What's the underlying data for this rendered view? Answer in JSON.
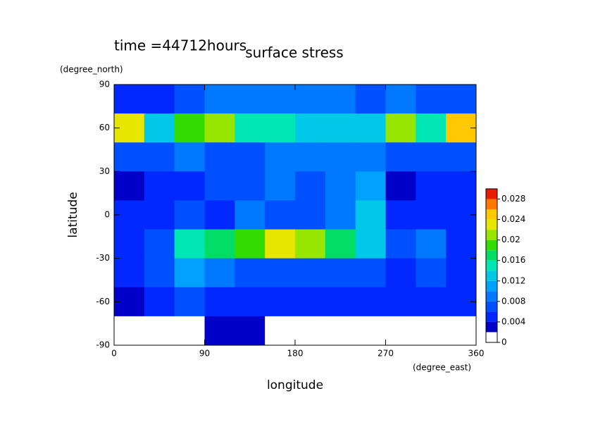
{
  "chart_data": {
    "type": "contour",
    "title": "surface stress",
    "annotation": "time =44712hours",
    "y_unit": "(degree_north)",
    "x_unit": "(degree_east)",
    "xlabel": "longitude",
    "ylabel": "latitude",
    "xlim": [
      0,
      360
    ],
    "xticks": [
      0,
      90,
      180,
      270,
      360
    ],
    "ylim": [
      -90,
      90
    ],
    "yticks": [
      -90,
      -60,
      -30,
      0,
      30,
      60,
      90
    ],
    "x": [
      15,
      45,
      75,
      105,
      135,
      165,
      195,
      225,
      255,
      285,
      315,
      345
    ],
    "y": [
      80,
      60,
      40,
      20,
      0,
      -20,
      -40,
      -60,
      -80
    ],
    "z": [
      [
        0.004,
        0.005,
        0.006,
        0.008,
        0.008,
        0.008,
        0.008,
        0.008,
        0.006,
        0.008,
        0.006,
        0.006
      ],
      [
        0.022,
        0.012,
        0.018,
        0.02,
        0.014,
        0.014,
        0.012,
        0.012,
        0.012,
        0.02,
        0.014,
        0.024
      ],
      [
        0.006,
        0.006,
        0.008,
        0.006,
        0.006,
        0.008,
        0.008,
        0.008,
        0.008,
        0.006,
        0.006,
        0.006
      ],
      [
        0.002,
        0.004,
        0.004,
        0.006,
        0.006,
        0.008,
        0.006,
        0.008,
        0.01,
        0.002,
        0.004,
        0.004
      ],
      [
        0.004,
        0.004,
        0.006,
        0.004,
        0.008,
        0.006,
        0.006,
        0.008,
        0.012,
        0.004,
        0.004,
        0.004
      ],
      [
        0.004,
        0.006,
        0.014,
        0.016,
        0.018,
        0.022,
        0.02,
        0.016,
        0.012,
        0.006,
        0.008,
        0.004
      ],
      [
        0.004,
        0.006,
        0.01,
        0.008,
        0.006,
        0.006,
        0.006,
        0.006,
        0.006,
        0.004,
        0.006,
        0.004
      ],
      [
        0.002,
        0.004,
        0.006,
        0.004,
        0.004,
        0.004,
        0.004,
        0.004,
        0.004,
        0.004,
        0.004,
        0.004
      ],
      [
        0,
        0,
        0,
        0.002,
        0.002,
        0,
        0,
        0,
        0,
        0,
        0,
        0
      ]
    ],
    "levels": [
      0,
      0.002,
      0.004,
      0.006,
      0.008,
      0.01,
      0.012,
      0.014,
      0.016,
      0.018,
      0.02,
      0.022,
      0.024,
      0.026,
      0.028,
      0.03
    ],
    "colors": [
      "#ffffff",
      "#0000c8",
      "#0028ff",
      "#0050ff",
      "#0078ff",
      "#00a0ff",
      "#00c8e6",
      "#00e6b4",
      "#00dc64",
      "#32dc00",
      "#96e600",
      "#e6e600",
      "#ffc800",
      "#ff7800",
      "#e61e00"
    ],
    "colorbar_lim": [
      0,
      0.03
    ],
    "colorbar_ticks": [
      0,
      0.004,
      0.008,
      0.012,
      0.016,
      0.02,
      0.024,
      0.028
    ]
  }
}
